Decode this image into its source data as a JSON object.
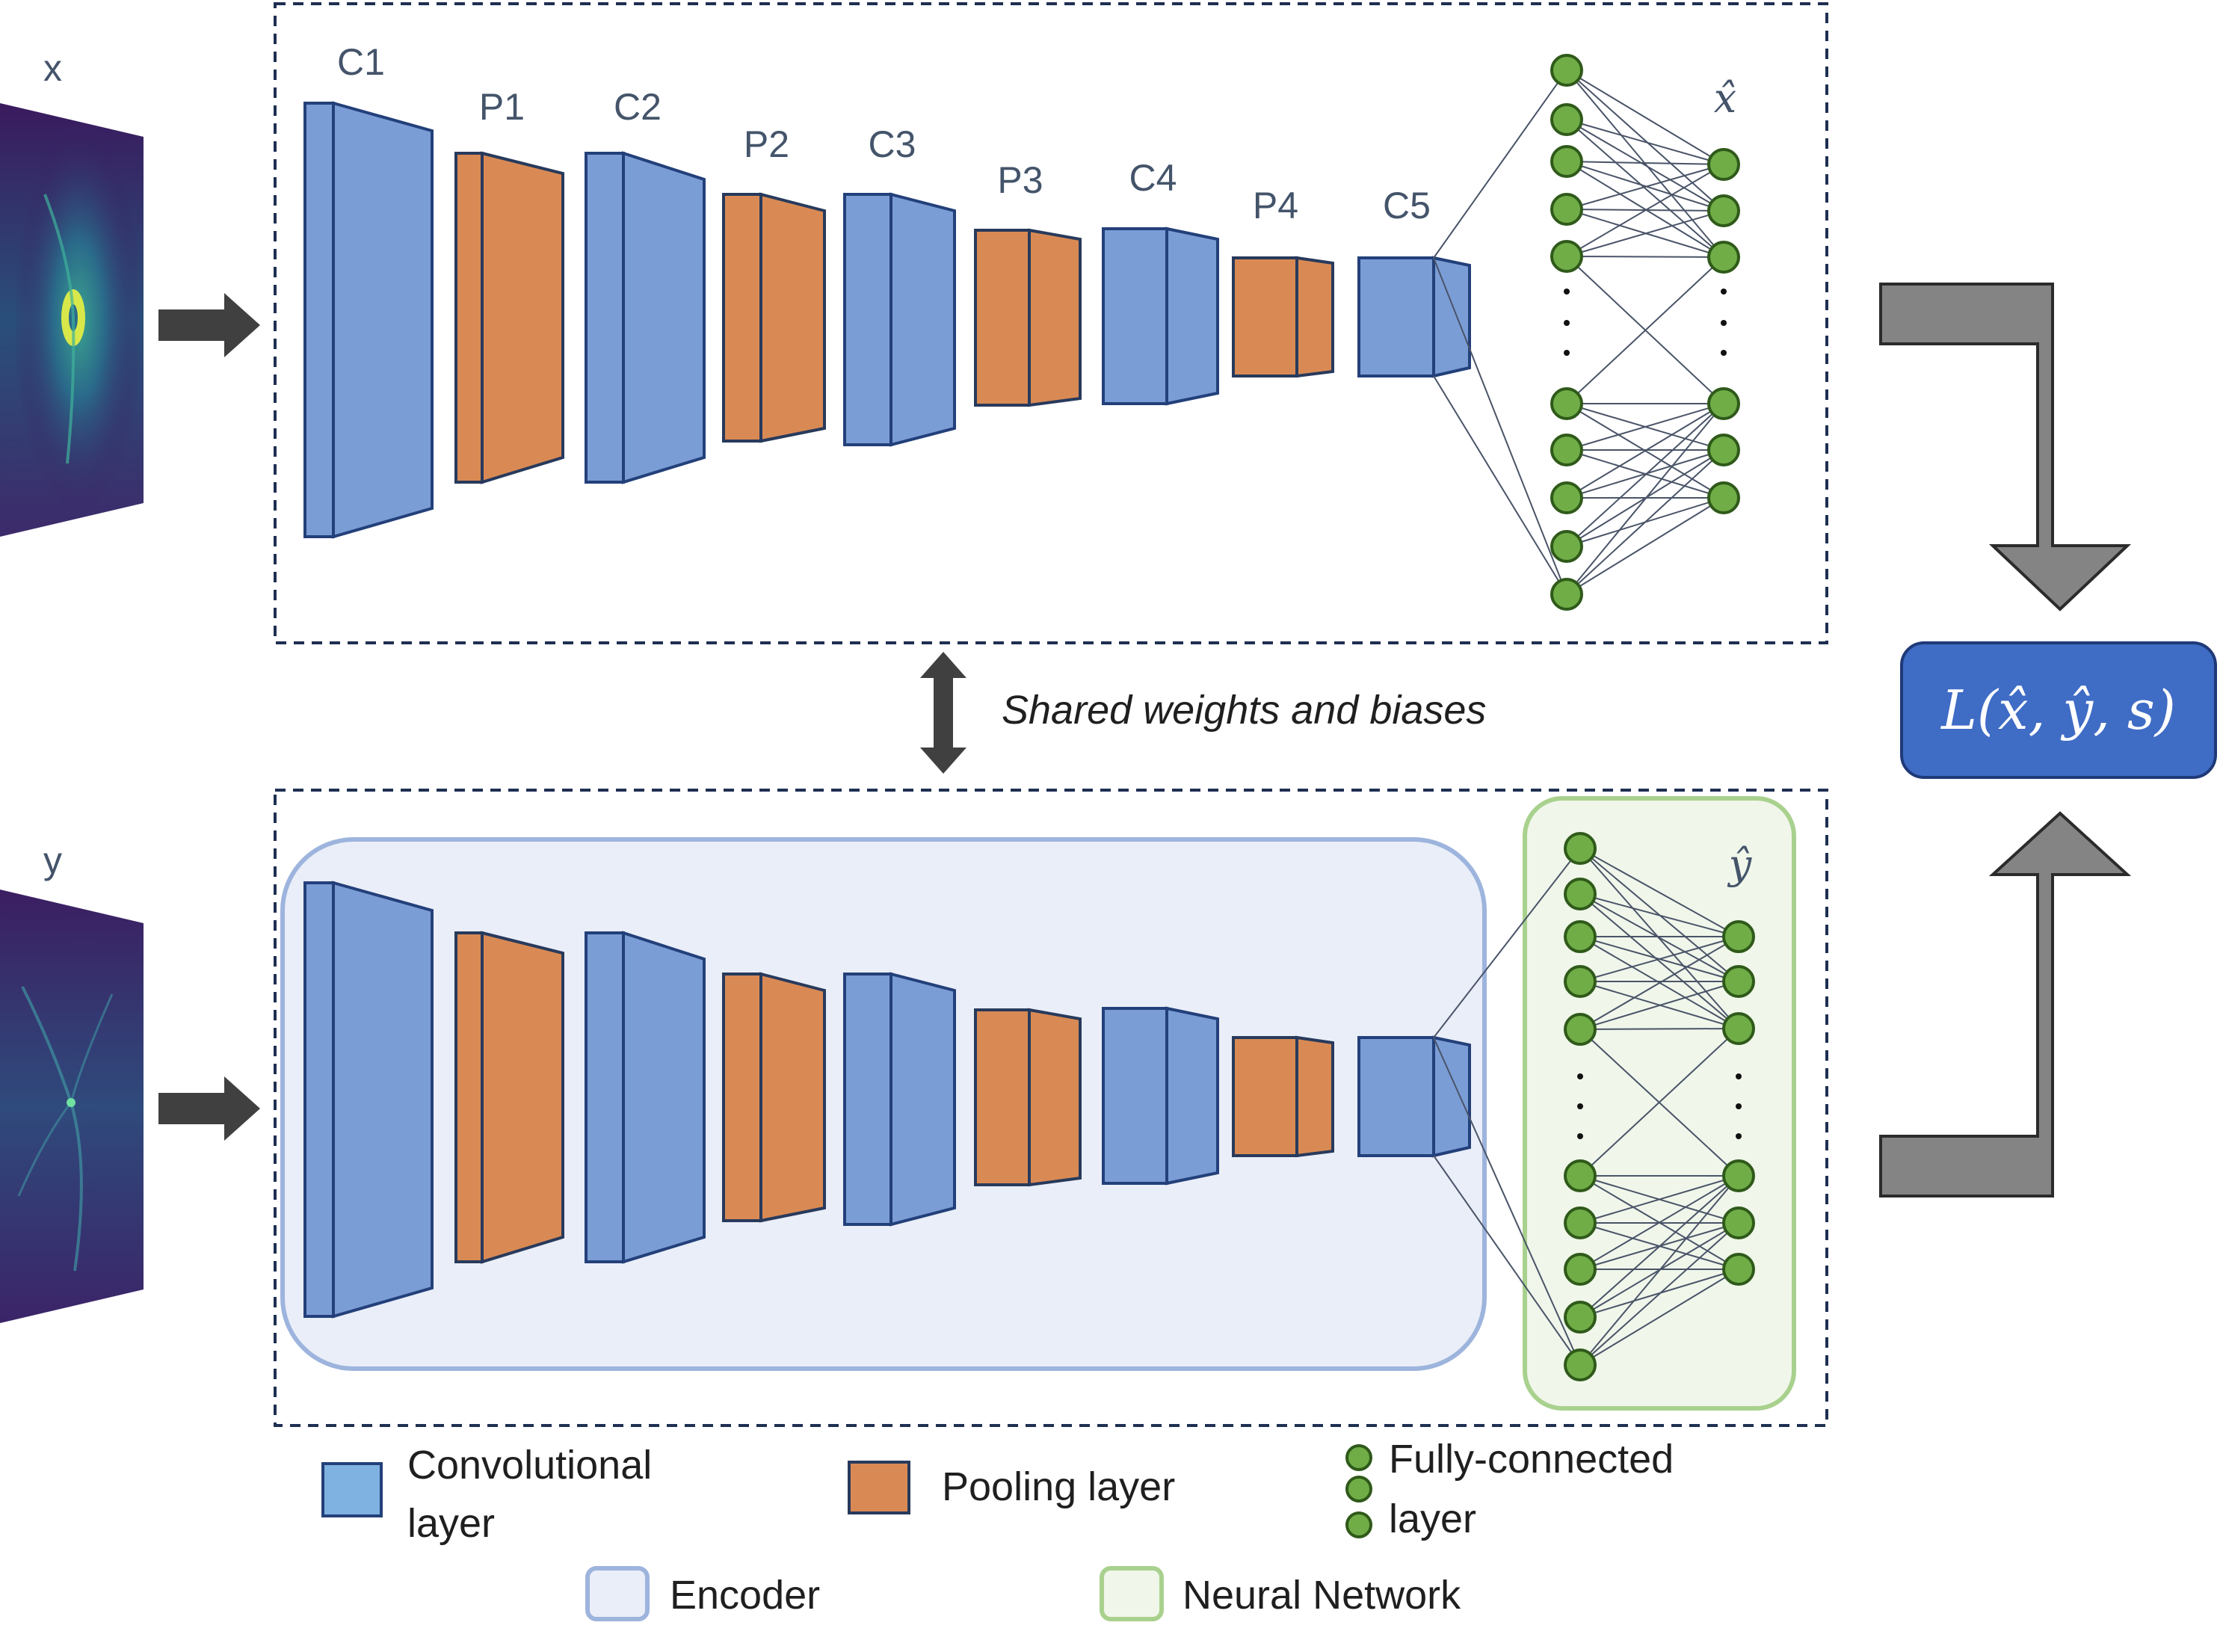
{
  "top_branch": {
    "input_label": "x",
    "output_label": "x̂",
    "layer_labels": [
      "C1",
      "P1",
      "C2",
      "P2",
      "C3",
      "P3",
      "C4",
      "P4",
      "C5"
    ]
  },
  "bottom_branch": {
    "input_label": "y",
    "output_label": "ŷ"
  },
  "shared_label": "Shared weights and biases",
  "loss_label": "L(x̂, ŷ, s)",
  "legend": {
    "conv": [
      "Convolutional",
      "layer"
    ],
    "pool": "Pooling layer",
    "fc": [
      "Fully-connected",
      "layer"
    ],
    "encoder": "Encoder",
    "nn": "Neural Network"
  },
  "colors": {
    "conv_fill": "#7b9dd6",
    "conv_stroke": "#23407a",
    "pool_fill": "#d98a54",
    "pool_stroke": "#283a5c",
    "node_fill": "#70ad47",
    "node_stroke": "#2f5a1a",
    "encoder_bg": "#eaeef8",
    "encoder_border": "#9db4dd",
    "nn_bg": "#f0f6ea",
    "nn_border": "#a9d18e",
    "loss_bg": "#3f6cc5",
    "arrow_gray": "#848484",
    "arrow_dark": "#404040",
    "dashed_border": "#1f2f52"
  }
}
